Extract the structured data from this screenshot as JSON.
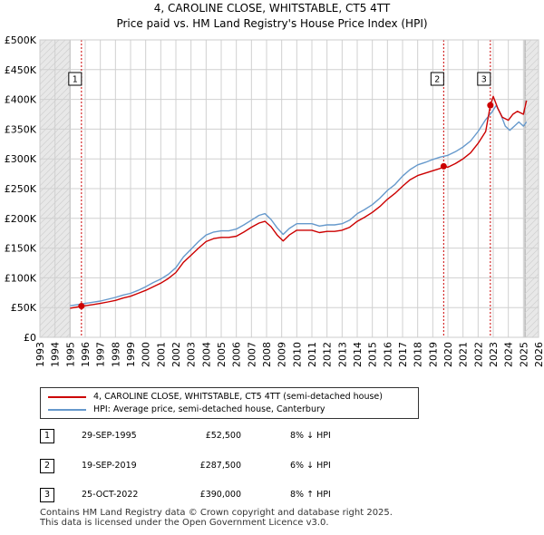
{
  "chart_data": {
    "type": "line",
    "title": "4, CAROLINE CLOSE, WHITSTABLE, CT5 4TT",
    "subtitle": "Price paid vs. HM Land Registry's House Price Index (HPI)",
    "xlim": [
      1993,
      2026
    ],
    "ylim": [
      0,
      500000
    ],
    "x_ticks": [
      "1993",
      "1994",
      "1995",
      "1996",
      "1997",
      "1998",
      "1999",
      "2000",
      "2001",
      "2002",
      "2003",
      "2004",
      "2005",
      "2006",
      "2007",
      "2008",
      "2009",
      "2010",
      "2011",
      "2012",
      "2013",
      "2014",
      "2015",
      "2016",
      "2017",
      "2018",
      "2019",
      "2020",
      "2021",
      "2022",
      "2023",
      "2024",
      "2025",
      "2026"
    ],
    "y_ticks": [
      {
        "value": 0,
        "label": "£0"
      },
      {
        "value": 50000,
        "label": "£50K"
      },
      {
        "value": 100000,
        "label": "£100K"
      },
      {
        "value": 150000,
        "label": "£150K"
      },
      {
        "value": 200000,
        "label": "£200K"
      },
      {
        "value": 250000,
        "label": "£250K"
      },
      {
        "value": 300000,
        "label": "£300K"
      },
      {
        "value": 350000,
        "label": "£350K"
      },
      {
        "value": 400000,
        "label": "£400K"
      },
      {
        "value": 450000,
        "label": "£450K"
      },
      {
        "value": 500000,
        "label": "£500K"
      }
    ],
    "shaded_ranges": [
      [
        1993,
        1995.0
      ],
      [
        2025.1,
        2026
      ]
    ],
    "series": [
      {
        "name": "4, CAROLINE CLOSE, WHITSTABLE, CT5 4TT (semi-detached house)",
        "color": "#cc0000",
        "x": [
          1995.0,
          1995.5,
          1995.75,
          1996.0,
          1996.5,
          1997.0,
          1997.5,
          1998.0,
          1998.5,
          1999.0,
          1999.5,
          2000.0,
          2000.5,
          2001.0,
          2001.5,
          2002.0,
          2002.5,
          2003.0,
          2003.5,
          2004.0,
          2004.5,
          2005.0,
          2005.5,
          2006.0,
          2006.5,
          2007.0,
          2007.5,
          2007.9,
          2008.3,
          2008.7,
          2009.1,
          2009.5,
          2010.0,
          2010.5,
          2011.0,
          2011.5,
          2012.0,
          2012.5,
          2013.0,
          2013.5,
          2014.0,
          2014.5,
          2015.0,
          2015.5,
          2016.0,
          2016.5,
          2017.0,
          2017.5,
          2018.0,
          2018.5,
          2019.0,
          2019.5,
          2019.72,
          2020.0,
          2020.5,
          2021.0,
          2021.5,
          2022.0,
          2022.5,
          2022.81,
          2023.0,
          2023.3,
          2023.6,
          2024.0,
          2024.3,
          2024.6,
          2025.0,
          2025.2
        ],
        "values": [
          49000,
          51000,
          52500,
          53000,
          55000,
          57000,
          59500,
          62000,
          66000,
          69000,
          74000,
          79000,
          85000,
          91000,
          99000,
          109000,
          126000,
          138000,
          150000,
          161000,
          166000,
          168000,
          168000,
          170000,
          177000,
          185000,
          192000,
          195000,
          186000,
          172000,
          162000,
          172000,
          180000,
          180000,
          180000,
          176000,
          178000,
          178000,
          180000,
          185000,
          195000,
          202000,
          210000,
          220000,
          232000,
          242000,
          254000,
          265000,
          272000,
          276000,
          280000,
          284000,
          287500,
          286000,
          292000,
          300000,
          310000,
          326000,
          346000,
          390000,
          405000,
          385000,
          370000,
          365000,
          375000,
          380000,
          375000,
          398000
        ]
      },
      {
        "name": "HPI: Average price, semi-detached house, Canterbury",
        "color": "#6699cc",
        "x": [
          1995.0,
          1995.5,
          1996.0,
          1996.5,
          1997.0,
          1997.5,
          1998.0,
          1998.5,
          1999.0,
          1999.5,
          2000.0,
          2000.5,
          2001.0,
          2001.5,
          2002.0,
          2002.5,
          2003.0,
          2003.5,
          2004.0,
          2004.5,
          2005.0,
          2005.5,
          2006.0,
          2006.5,
          2007.0,
          2007.5,
          2007.9,
          2008.3,
          2008.7,
          2009.1,
          2009.5,
          2010.0,
          2010.5,
          2011.0,
          2011.5,
          2012.0,
          2012.5,
          2013.0,
          2013.5,
          2014.0,
          2014.5,
          2015.0,
          2015.5,
          2016.0,
          2016.5,
          2017.0,
          2017.5,
          2018.0,
          2018.5,
          2019.0,
          2019.5,
          2020.0,
          2020.5,
          2021.0,
          2021.5,
          2022.0,
          2022.5,
          2022.9,
          2023.2,
          2023.5,
          2023.8,
          2024.1,
          2024.4,
          2024.7,
          2025.0,
          2025.2
        ],
        "values": [
          53000,
          55000,
          57000,
          59000,
          61000,
          64000,
          67000,
          71000,
          74000,
          79000,
          85000,
          92000,
          98000,
          106000,
          117000,
          135000,
          148000,
          161000,
          172000,
          177000,
          179000,
          179000,
          182000,
          189000,
          197000,
          205000,
          208000,
          198000,
          184000,
          173000,
          183000,
          191000,
          191000,
          191000,
          187000,
          189000,
          189000,
          191000,
          197000,
          208000,
          215000,
          223000,
          234000,
          247000,
          257000,
          271000,
          282000,
          290000,
          294000,
          299000,
          303000,
          306000,
          312000,
          320000,
          330000,
          346000,
          366000,
          378000,
          390000,
          375000,
          355000,
          348000,
          355000,
          362000,
          355000,
          362000
        ]
      }
    ],
    "sales": [
      {
        "marker": "1",
        "x": 1995.75,
        "price": 52500
      },
      {
        "marker": "2",
        "x": 2019.72,
        "price": 287500
      },
      {
        "marker": "3",
        "x": 2022.81,
        "price": 390000
      }
    ]
  },
  "legend": {
    "property_label": "4, CAROLINE CLOSE, WHITSTABLE, CT5 4TT (semi-detached house)",
    "hpi_label": "HPI: Average price, semi-detached house, Canterbury"
  },
  "sales_table": [
    {
      "marker": "1",
      "date": "29-SEP-1995",
      "price": "£52,500",
      "hpi": "8% ↓ HPI"
    },
    {
      "marker": "2",
      "date": "19-SEP-2019",
      "price": "£287,500",
      "hpi": "6% ↓ HPI"
    },
    {
      "marker": "3",
      "date": "25-OCT-2022",
      "price": "£390,000",
      "hpi": "8% ↑ HPI"
    }
  ],
  "footer": {
    "line1": "Contains HM Land Registry data © Crown copyright and database right 2025.",
    "line2": "This data is licensed under the Open Government Licence v3.0."
  },
  "colors": {
    "property": "#cc0000",
    "hpi": "#6699cc",
    "grid": "#d0d0d0",
    "shade": "#e8e8e8"
  }
}
